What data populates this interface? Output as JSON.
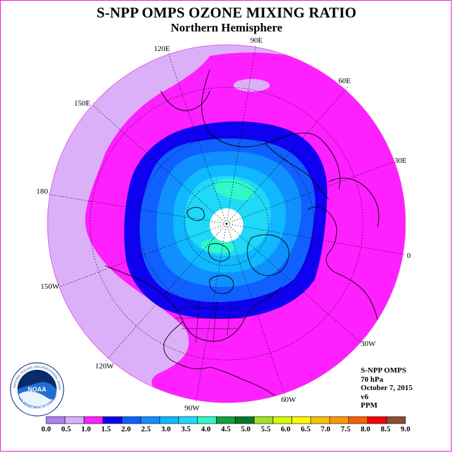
{
  "title": "S-NPP OMPS OZONE MIXING RATIO",
  "subtitle": "Northern Hemisphere",
  "longitude_labels": [
    "90E",
    "60E",
    "30E",
    "0",
    "30W",
    "60W",
    "90W",
    "120W",
    "150W",
    "180",
    "150E",
    "120E"
  ],
  "info": {
    "instrument": "S-NPP OMPS",
    "pressure_level": "70 hPa",
    "date": "October 7, 2015",
    "version": "v6",
    "units": "PPM"
  },
  "logo": {
    "name": "NOAA",
    "ring_text": "NATIONAL OCEANIC AND ATMOSPHERIC ADMINISTRATION",
    "ring_text_bottom": "U.S. DEPARTMENT OF COMMERCE"
  },
  "colorbar": {
    "ticks": [
      "0.0",
      "0.5",
      "1.0",
      "1.5",
      "2.0",
      "2.5",
      "3.0",
      "3.5",
      "4.0",
      "4.5",
      "5.0",
      "5.5",
      "6.0",
      "6.5",
      "7.0",
      "7.5",
      "8.0",
      "8.5",
      "9.0"
    ],
    "colors": [
      "#b080f0",
      "#dcb0f8",
      "#ff20ff",
      "#1000f0",
      "#1060ff",
      "#1090ff",
      "#10b8ff",
      "#20d8f8",
      "#30f8c8",
      "#10a040",
      "#087828",
      "#a0e020",
      "#d8f800",
      "#fff800",
      "#f8c000",
      "#f89800",
      "#f86000",
      "#f80000",
      "#885030"
    ]
  },
  "map": {
    "projection": "north polar stereographic",
    "center": "north pole",
    "grid": true,
    "no_data_polar_cap": true,
    "field_levels_ppm": [
      0.5,
      1.0,
      1.5,
      2.0,
      2.5,
      3.0,
      3.5,
      4.0
    ]
  }
}
